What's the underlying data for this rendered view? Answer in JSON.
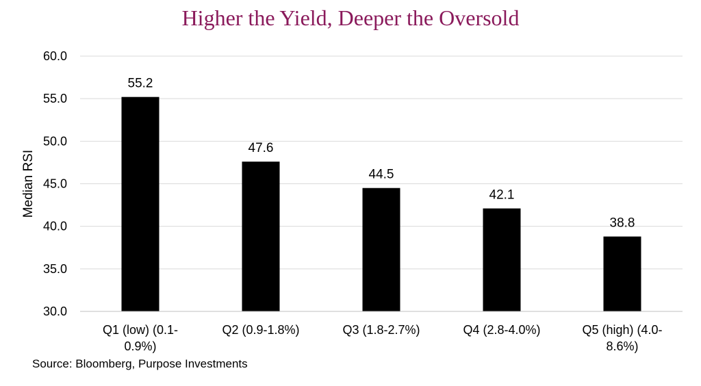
{
  "chart_data": {
    "type": "bar",
    "title": "Higher the Yield, Deeper the Oversold",
    "ylabel": "Median RSI",
    "xlabel": "",
    "ylim": [
      30,
      60
    ],
    "yticks": [
      "30.0",
      "35.0",
      "40.0",
      "45.0",
      "50.0",
      "55.0",
      "60.0"
    ],
    "categories": [
      [
        "Q1 (low) (0.1-",
        "0.9%)"
      ],
      [
        "Q2 (0.9-1.8%)"
      ],
      [
        "Q3 (1.8-2.7%)"
      ],
      [
        "Q4 (2.8-4.0%)"
      ],
      [
        "Q5 (high) (4.0-",
        "8.6%)"
      ]
    ],
    "values": [
      55.2,
      47.6,
      44.5,
      42.1,
      38.8
    ],
    "value_labels": [
      "55.2",
      "47.6",
      "44.5",
      "42.1",
      "38.8"
    ],
    "bar_color": "#000000",
    "grid": true,
    "gridline_color": "#d9d9d9"
  },
  "source": "Source: Bloomberg, Purpose Investments"
}
